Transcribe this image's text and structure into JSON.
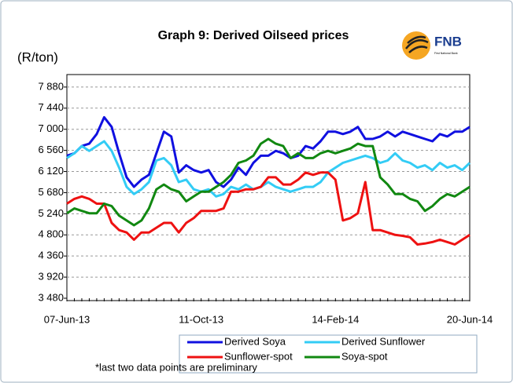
{
  "chart_data": {
    "type": "line",
    "title": "Graph 9: Derived Oilseed prices",
    "y_label": "(R/ton)",
    "logo": "FNB",
    "logo_subtitle": "First National Bank",
    "footnote": "*last two data points are preliminary",
    "categories": [
      "07-Jun-13",
      null,
      null,
      null,
      null,
      null,
      null,
      null,
      null,
      null,
      null,
      null,
      null,
      null,
      null,
      null,
      null,
      null,
      "11-Oct-13",
      null,
      null,
      null,
      null,
      null,
      null,
      null,
      null,
      null,
      null,
      null,
      null,
      null,
      null,
      null,
      null,
      null,
      "14-Feb-14",
      null,
      null,
      null,
      null,
      null,
      null,
      null,
      null,
      null,
      null,
      null,
      null,
      null,
      null,
      null,
      null,
      null,
      "20-Jun-14"
    ],
    "series": [
      {
        "name": "Derived Soya",
        "color": "#1010e0",
        "values": [
          6450,
          6500,
          6650,
          6700,
          6900,
          7250,
          7050,
          6500,
          6000,
          5800,
          5950,
          6050,
          6500,
          6950,
          6850,
          6100,
          6250,
          6150,
          6100,
          6150,
          5900,
          5800,
          5950,
          6200,
          6050,
          6300,
          6450,
          6450,
          6550,
          6500,
          6400,
          6450,
          6650,
          6600,
          6750,
          6950,
          6950,
          6900,
          6950,
          7050,
          6800,
          6800,
          6850,
          6950,
          6850,
          6950,
          6900,
          6850,
          6800,
          6750,
          6900,
          6850,
          6950,
          6950,
          7050
        ]
      },
      {
        "name": "Derived Sunflower",
        "color": "#33ccf5",
        "values": [
          6400,
          6500,
          6650,
          6550,
          6650,
          6750,
          6550,
          6200,
          5800,
          5650,
          5750,
          5900,
          6350,
          6400,
          6250,
          5900,
          5950,
          5750,
          5700,
          5750,
          5600,
          5650,
          5800,
          5750,
          5850,
          5750,
          5800,
          5900,
          5800,
          5750,
          5700,
          5750,
          5800,
          5800,
          5900,
          6100,
          6200,
          6300,
          6350,
          6400,
          6450,
          6400,
          6300,
          6350,
          6500,
          6350,
          6300,
          6200,
          6250,
          6150,
          6300,
          6200,
          6250,
          6150,
          6300
        ]
      },
      {
        "name": "Sunflower-spot",
        "color": "#ee1111",
        "values": [
          5450,
          5550,
          5600,
          5550,
          5450,
          5450,
          5050,
          4900,
          4850,
          4700,
          4850,
          4850,
          4950,
          5050,
          5050,
          4850,
          5050,
          5150,
          5300,
          5300,
          5300,
          5350,
          5700,
          5700,
          5750,
          5750,
          5800,
          6000,
          6000,
          5850,
          5850,
          5950,
          6100,
          6050,
          6100,
          6100,
          5950,
          5100,
          5150,
          5250,
          5900,
          4900,
          4900,
          4850,
          4800,
          4780,
          4750,
          4600,
          4620,
          4650,
          4700,
          4650,
          4600,
          4700,
          4800
        ]
      },
      {
        "name": "Soya-spot",
        "color": "#118811",
        "values": [
          5250,
          5350,
          5300,
          5250,
          5250,
          5450,
          5400,
          5200,
          5100,
          5000,
          5100,
          5350,
          5750,
          5850,
          5750,
          5700,
          5500,
          5600,
          5700,
          5700,
          5800,
          5900,
          6050,
          6300,
          6350,
          6450,
          6700,
          6800,
          6700,
          6650,
          6400,
          6500,
          6400,
          6400,
          6500,
          6550,
          6500,
          6550,
          6600,
          6700,
          6650,
          6650,
          6000,
          5850,
          5650,
          5650,
          5550,
          5500,
          5300,
          5400,
          5550,
          5650,
          5600,
          5700,
          5800
        ]
      }
    ],
    "ylim": [
      3480,
      8140
    ],
    "yticks": [
      {
        "value": 3480,
        "label": "3 480"
      },
      {
        "value": 3920,
        "label": "3 920"
      },
      {
        "value": 4360,
        "label": "4 360"
      },
      {
        "value": 4800,
        "label": "4 800"
      },
      {
        "value": 5240,
        "label": "5 240"
      },
      {
        "value": 5680,
        "label": "5 680"
      },
      {
        "value": 6120,
        "label": "6 120"
      },
      {
        "value": 6560,
        "label": "6 560"
      },
      {
        "value": 7000,
        "label": "7 000"
      },
      {
        "value": 7440,
        "label": "7 440"
      },
      {
        "value": 7880,
        "label": "7 880"
      }
    ],
    "grid": true
  }
}
